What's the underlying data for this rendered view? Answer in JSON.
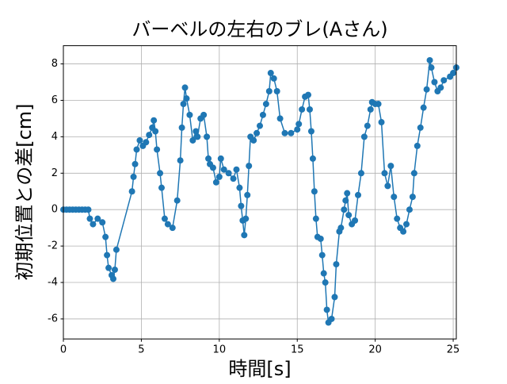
{
  "chart_data": {
    "type": "line",
    "title": "バーベルの左右のブレ(Aさん)",
    "xlabel": "時間[s]",
    "ylabel": "初期位置との差[cm]",
    "color": "#1f77b4",
    "grid": true,
    "markers": true,
    "xlim": [
      0,
      25.2
    ],
    "ylim": [
      -7.1,
      9.0
    ],
    "xticks": [
      0,
      5,
      10,
      15,
      20,
      25
    ],
    "yticks": [
      -6,
      -4,
      -2,
      0,
      2,
      4,
      6,
      8
    ],
    "x": [
      0,
      0.2,
      0.4,
      0.6,
      0.8,
      1.0,
      1.2,
      1.4,
      1.6,
      1.7,
      1.9,
      2.2,
      2.5,
      2.7,
      2.8,
      2.9,
      3.1,
      3.2,
      3.3,
      3.4,
      4.4,
      4.5,
      4.6,
      4.7,
      4.9,
      5.1,
      5.3,
      5.5,
      5.7,
      5.8,
      5.9,
      6.0,
      6.2,
      6.3,
      6.5,
      6.7,
      7.0,
      7.3,
      7.5,
      7.6,
      7.7,
      7.8,
      7.9,
      8.1,
      8.3,
      8.5,
      8.6,
      8.8,
      9.0,
      9.2,
      9.3,
      9.4,
      9.6,
      9.8,
      10.0,
      10.1,
      10.3,
      10.6,
      10.9,
      11.1,
      11.3,
      11.4,
      11.5,
      11.6,
      11.7,
      11.8,
      11.9,
      12.0,
      12.2,
      12.4,
      12.6,
      12.8,
      13.0,
      13.2,
      13.3,
      13.5,
      13.7,
      13.9,
      14.2,
      14.6,
      15.0,
      15.1,
      15.3,
      15.5,
      15.7,
      15.8,
      15.9,
      16.0,
      16.1,
      16.2,
      16.3,
      16.5,
      16.6,
      16.7,
      16.8,
      16.9,
      17.0,
      17.2,
      17.4,
      17.5,
      17.7,
      17.8,
      18.0,
      18.1,
      18.2,
      18.3,
      18.5,
      18.7,
      18.9,
      19.1,
      19.3,
      19.5,
      19.7,
      19.8,
      20.0,
      20.2,
      20.4,
      20.6,
      20.8,
      21.0,
      21.2,
      21.4,
      21.6,
      21.8,
      22.0,
      22.2,
      22.4,
      22.5,
      22.7,
      22.9,
      23.1,
      23.3,
      23.5,
      23.6,
      23.8,
      24.0,
      24.2,
      24.4,
      24.8,
      25.0,
      25.2
    ],
    "values": [
      0,
      0,
      0,
      0,
      0,
      0,
      0,
      0,
      0,
      -0.5,
      -0.8,
      -0.5,
      -0.7,
      -1.5,
      -2.5,
      -3.2,
      -3.6,
      -3.8,
      -3.3,
      -2.2,
      1.0,
      1.8,
      2.5,
      3.3,
      3.8,
      3.5,
      3.7,
      4.1,
      4.5,
      4.9,
      4.3,
      3.3,
      2.0,
      1.2,
      -0.5,
      -0.8,
      -1.0,
      0.5,
      2.7,
      4.5,
      5.8,
      6.7,
      6.1,
      5.2,
      3.8,
      4.3,
      4.0,
      5.0,
      5.2,
      4.0,
      2.8,
      2.5,
      2.3,
      1.5,
      1.8,
      2.8,
      2.2,
      2.0,
      1.7,
      2.2,
      1.2,
      0.2,
      -0.6,
      -1.4,
      -0.5,
      0.8,
      2.4,
      4.0,
      3.8,
      4.2,
      4.6,
      5.2,
      5.8,
      6.5,
      7.5,
      7.2,
      6.5,
      5.0,
      4.2,
      4.2,
      4.4,
      4.7,
      5.5,
      6.2,
      6.3,
      5.5,
      4.3,
      2.8,
      1.0,
      -0.5,
      -1.5,
      -1.6,
      -2.5,
      -3.5,
      -4.0,
      -5.5,
      -6.2,
      -6.0,
      -4.8,
      -3.0,
      -1.2,
      -1.0,
      0.0,
      0.5,
      0.9,
      -0.3,
      -0.8,
      -0.6,
      0.8,
      2.0,
      4.0,
      4.6,
      5.5,
      5.9,
      5.8,
      5.8,
      4.8,
      2.0,
      1.3,
      2.4,
      0.7,
      -0.5,
      -1.0,
      -1.2,
      -0.8,
      0.0,
      0.7,
      2.0,
      3.5,
      4.5,
      5.6,
      6.6,
      8.2,
      7.8,
      7.0,
      6.5,
      6.7,
      7.1,
      7.3,
      7.5,
      7.8
    ]
  }
}
